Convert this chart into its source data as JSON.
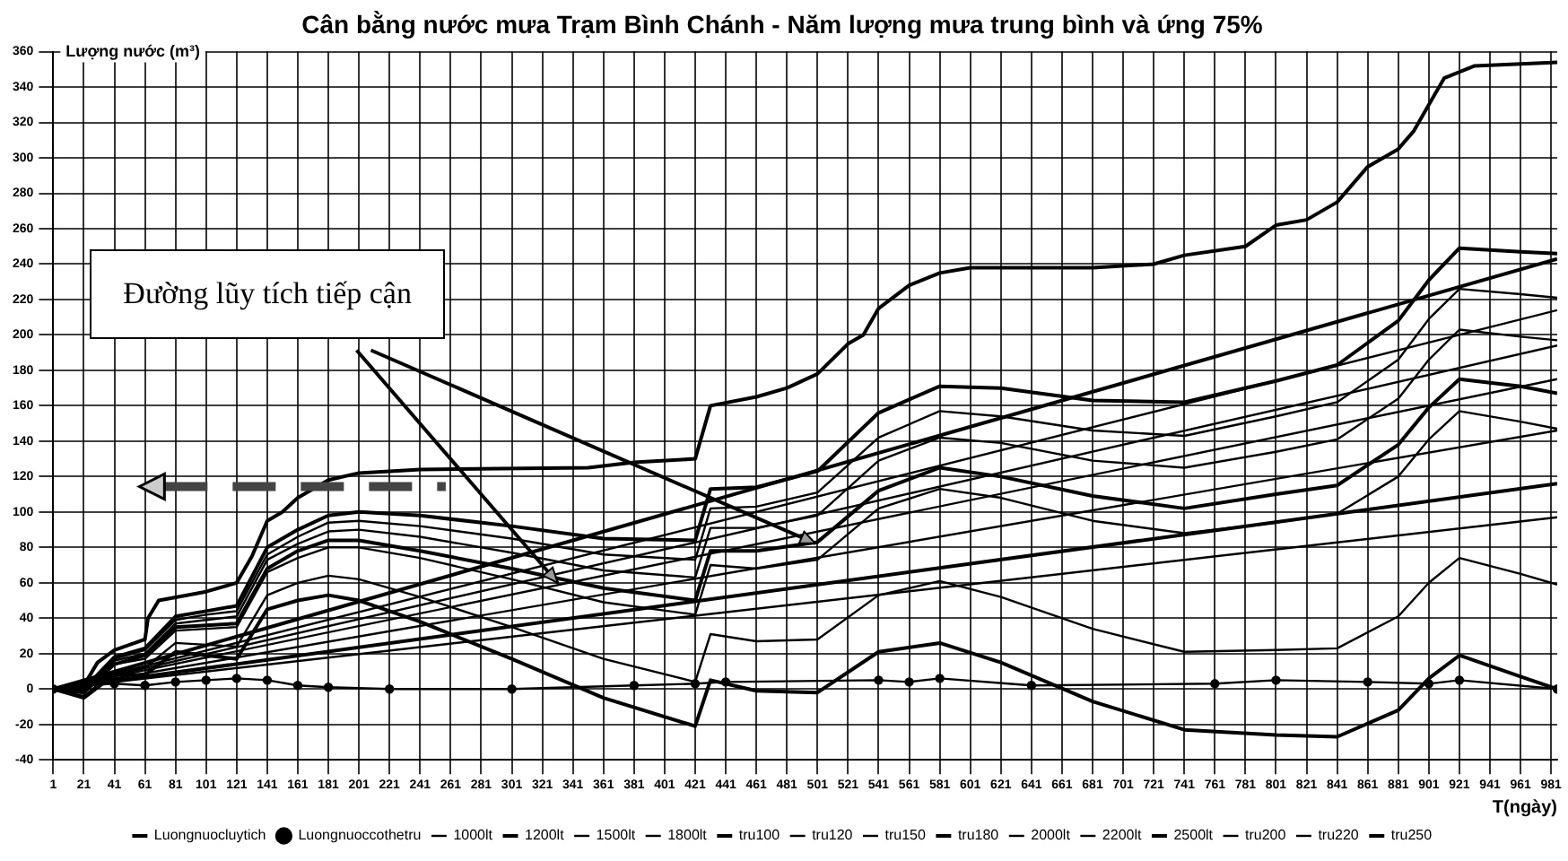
{
  "chart_data": {
    "type": "line",
    "title": "Cân bằng nước mưa Trạm Bình Chánh - Năm lượng mưa trung bình và ứng 75%",
    "ylabel": "Lượng nước (m³)",
    "xlabel": "T(ngày)",
    "annotations": [
      {
        "text": "Đường lũy tích tiếp cận",
        "x": 331,
        "y": 60
      }
    ],
    "xlim": [
      1,
      985
    ],
    "xticks": [
      1,
      21,
      41,
      61,
      81,
      101,
      121,
      141,
      161,
      181,
      201,
      221,
      241,
      261,
      281,
      301,
      321,
      341,
      361,
      381,
      401,
      421,
      441,
      461,
      481,
      501,
      521,
      541,
      561,
      581,
      601,
      621,
      641,
      661,
      681,
      701,
      721,
      741,
      761,
      781,
      801,
      821,
      841,
      861,
      881,
      901,
      921,
      941,
      961,
      981
    ],
    "ylim": [
      -40,
      360
    ],
    "yticks": [
      -40,
      -20,
      0,
      20,
      40,
      60,
      80,
      100,
      120,
      140,
      160,
      180,
      200,
      220,
      240,
      260,
      280,
      300,
      320,
      340,
      360
    ],
    "grid": true,
    "legend": "bottom",
    "marker": "none",
    "line_style": "solid",
    "series": [
      {
        "name": "Luongnuocluytich",
        "color": "#000000",
        "x": [
          1,
          21,
          30,
          41,
          61,
          63,
          70,
          101,
          121,
          131,
          141,
          151,
          161,
          181,
          201,
          241,
          351,
          381,
          421,
          431,
          461,
          481,
          501,
          521,
          531,
          541,
          561,
          581,
          601,
          681,
          721,
          741,
          781,
          801,
          821,
          841,
          861,
          881,
          891,
          901,
          911,
          931,
          985
        ],
        "values": [
          0,
          2,
          15,
          22,
          28,
          40,
          50,
          55,
          60,
          75,
          95,
          100,
          108,
          118,
          122,
          124,
          125,
          128,
          130,
          160,
          165,
          170,
          178,
          195,
          200,
          215,
          228,
          235,
          238,
          238,
          240,
          245,
          250,
          262,
          265,
          275,
          295,
          305,
          315,
          330,
          345,
          352,
          354
        ]
      },
      {
        "name": "Luongnuoccothetru",
        "color": "#000000",
        "marker": "circle",
        "x": [
          1,
          21,
          41,
          61,
          81,
          101,
          121,
          141,
          161,
          181,
          221,
          301,
          381,
          421,
          441,
          541,
          561,
          581,
          641,
          761,
          801,
          861,
          901,
          921,
          985
        ],
        "values": [
          0,
          2,
          3,
          2,
          4,
          5,
          6,
          5,
          2,
          1,
          0,
          0,
          2,
          3,
          4,
          5,
          4,
          6,
          2,
          3,
          5,
          4,
          3,
          5,
          0
        ]
      },
      {
        "name": "1000lt",
        "color": "#000000",
        "x": [
          1,
          985
        ],
        "values": [
          0,
          97
        ]
      },
      {
        "name": "1200lt",
        "color": "#000000",
        "x": [
          1,
          985
        ],
        "values": [
          0,
          116
        ]
      },
      {
        "name": "1500lt",
        "color": "#000000",
        "x": [
          1,
          985
        ],
        "values": [
          0,
          146
        ]
      },
      {
        "name": "1800lt",
        "color": "#000000",
        "x": [
          1,
          985
        ],
        "values": [
          0,
          175
        ]
      },
      {
        "name": "tru100",
        "color": "#000000",
        "x": [
          1,
          21,
          41,
          61,
          81,
          101,
          121,
          141,
          161,
          181,
          201,
          241,
          301,
          361,
          421,
          431,
          461,
          501,
          541,
          581,
          621,
          681,
          741,
          801,
          841,
          881,
          901,
          921,
          961,
          985
        ],
        "values": [
          0,
          0,
          18,
          23,
          41,
          44,
          47,
          80,
          90,
          98,
          100,
          98,
          92,
          85,
          84,
          113,
          114,
          123,
          156,
          171,
          170,
          163,
          162,
          174,
          183,
          208,
          231,
          249,
          247,
          246
        ]
      },
      {
        "name": "tru120",
        "color": "#000000",
        "x": [
          1,
          21,
          41,
          61,
          81,
          101,
          121,
          141,
          161,
          181,
          201,
          241,
          301,
          361,
          421,
          431,
          461,
          501,
          541,
          581,
          621,
          681,
          741,
          801,
          841,
          881,
          901,
          921,
          961,
          985
        ],
        "values": [
          0,
          0,
          17,
          22,
          39,
          42,
          44,
          76,
          86,
          94,
          95,
          92,
          85,
          76,
          73,
          102,
          103,
          111,
          142,
          157,
          154,
          146,
          143,
          154,
          162,
          186,
          209,
          226,
          223,
          221
        ]
      },
      {
        "name": "tru150",
        "color": "#000000",
        "x": [
          1,
          21,
          41,
          61,
          81,
          101,
          121,
          141,
          161,
          181,
          201,
          241,
          301,
          361,
          421,
          431,
          461,
          501,
          541,
          581,
          621,
          681,
          741,
          801,
          841,
          881,
          901,
          921,
          961,
          985
        ],
        "values": [
          0,
          -1,
          16,
          20,
          37,
          39,
          41,
          73,
          82,
          89,
          90,
          86,
          77,
          67,
          63,
          91,
          91,
          98,
          129,
          142,
          139,
          129,
          125,
          134,
          141,
          164,
          186,
          203,
          199,
          197
        ]
      },
      {
        "name": "tru180",
        "color": "#000000",
        "x": [
          1,
          21,
          41,
          61,
          81,
          101,
          121,
          141,
          161,
          181,
          201,
          241,
          301,
          361,
          421,
          431,
          461,
          501,
          541,
          581,
          621,
          681,
          741,
          801,
          841,
          881,
          901,
          921,
          961,
          985
        ],
        "values": [
          0,
          -2,
          14,
          19,
          35,
          36,
          37,
          68,
          78,
          84,
          84,
          78,
          68,
          57,
          50,
          78,
          78,
          83,
          112,
          125,
          120,
          109,
          102,
          110,
          115,
          138,
          159,
          175,
          171,
          167
        ]
      },
      {
        "name": "2000lt",
        "color": "#000000",
        "x": [
          1,
          985
        ],
        "values": [
          0,
          194
        ]
      },
      {
        "name": "2200lt",
        "color": "#000000",
        "x": [
          1,
          985
        ],
        "values": [
          0,
          214
        ]
      },
      {
        "name": "2500lt",
        "color": "#000000",
        "x": [
          1,
          985
        ],
        "values": [
          0,
          243
        ]
      },
      {
        "name": "tru200",
        "color": "#000000",
        "x": [
          1,
          21,
          41,
          61,
          81,
          101,
          121,
          141,
          161,
          181,
          201,
          241,
          301,
          361,
          421,
          431,
          461,
          501,
          541,
          581,
          621,
          681,
          741,
          801,
          841,
          881,
          901,
          921,
          961,
          985
        ],
        "values": [
          0,
          -2,
          14,
          17,
          33,
          34,
          35,
          66,
          74,
          80,
          80,
          74,
          62,
          49,
          42,
          70,
          68,
          73,
          102,
          113,
          108,
          95,
          88,
          94,
          99,
          120,
          141,
          157,
          151,
          147
        ]
      },
      {
        "name": "tru220",
        "color": "#000000",
        "x": [
          1,
          21,
          41,
          61,
          81,
          101,
          121,
          141,
          161,
          181,
          201,
          241,
          301,
          361,
          421,
          431,
          461,
          501,
          541,
          581,
          621,
          681,
          741,
          801,
          841,
          881,
          901,
          921,
          961,
          985
        ],
        "values": [
          0,
          -4,
          10,
          12,
          26,
          25,
          24,
          53,
          60,
          64,
          62,
          52,
          35,
          17,
          4,
          31,
          27,
          28,
          53,
          61,
          52,
          34,
          21,
          22,
          23,
          41,
          60,
          74,
          65,
          59
        ]
      },
      {
        "name": "tru250",
        "color": "#000000",
        "x": [
          1,
          21,
          41,
          61,
          81,
          101,
          121,
          141,
          161,
          181,
          201,
          241,
          301,
          361,
          421,
          431,
          461,
          501,
          541,
          581,
          621,
          681,
          741,
          801,
          841,
          881,
          901,
          921,
          961,
          985
        ],
        "values": [
          0,
          -5,
          8,
          8,
          21,
          19,
          17,
          45,
          50,
          53,
          50,
          38,
          17,
          -5,
          -21,
          5,
          -1,
          -2,
          21,
          26,
          15,
          -7,
          -23,
          -26,
          -27,
          -12,
          6,
          19,
          7,
          0
        ]
      }
    ]
  }
}
